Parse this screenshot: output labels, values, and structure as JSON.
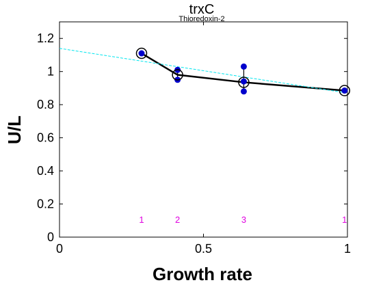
{
  "chart_data": {
    "type": "scatter",
    "title": "trxC",
    "subtitle": "Thioredoxin-2",
    "xlabel": "Growth rate",
    "ylabel": "U/L",
    "xlim": [
      0,
      1
    ],
    "ylim": [
      0,
      1.3
    ],
    "x_ticks": [
      0,
      0.5,
      1
    ],
    "x_tick_labels": [
      "0",
      "0.5",
      "1"
    ],
    "y_ticks": [
      0,
      0.2,
      0.4,
      0.6,
      0.8,
      1,
      1.2
    ],
    "y_tick_labels": [
      "0",
      "0.2",
      "0.4",
      "0.6",
      "0.8",
      "1",
      "1.2"
    ],
    "grid": false,
    "series": [
      {
        "role": "replicates",
        "color": "#0000cc",
        "points": [
          {
            "x": 0.285,
            "y": 1.11
          },
          {
            "x": 0.41,
            "y": 1.01
          },
          {
            "x": 0.41,
            "y": 0.95
          },
          {
            "x": 0.64,
            "y": 1.03
          },
          {
            "x": 0.64,
            "y": 0.94
          },
          {
            "x": 0.64,
            "y": 0.88
          },
          {
            "x": 0.99,
            "y": 0.885
          }
        ]
      },
      {
        "role": "means",
        "color": "#000000",
        "x": [
          0.285,
          0.41,
          0.64,
          0.99
        ],
        "y": [
          1.11,
          0.98,
          0.935,
          0.885
        ]
      },
      {
        "role": "fit",
        "color": "#00e5ee",
        "style": "dashed",
        "x": [
          0,
          1
        ],
        "y": [
          1.14,
          0.87
        ]
      }
    ],
    "annotations": [
      {
        "x": 0.285,
        "text": "1"
      },
      {
        "x": 0.41,
        "text": "2"
      },
      {
        "x": 0.64,
        "text": "3"
      },
      {
        "x": 0.99,
        "text": "1"
      }
    ]
  }
}
